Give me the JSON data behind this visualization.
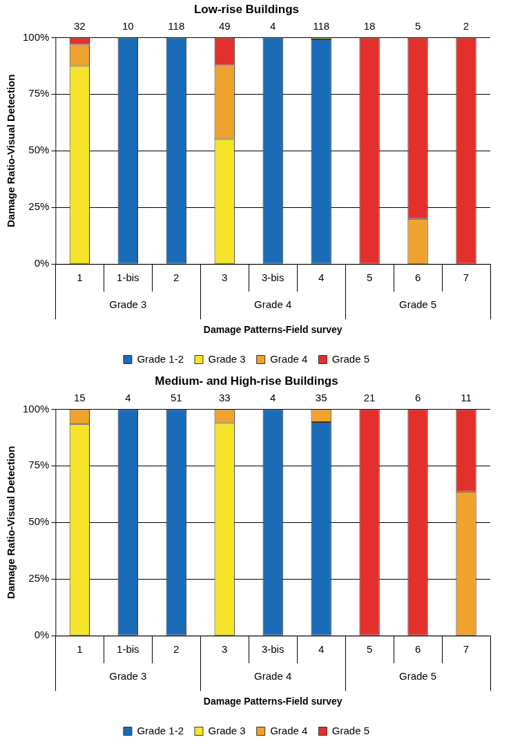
{
  "chart_data": [
    {
      "type": "bar",
      "title": "Low-rise Buildings",
      "xlabel": "Damage Patterns-Field survey",
      "ylabel": "Damage Ratio-Visual Detection",
      "stacked": true,
      "categories": [
        "1",
        "1-bis",
        "2",
        "3",
        "3-bis",
        "4",
        "5",
        "6",
        "7"
      ],
      "series": [
        {
          "name": "Grade 1-2",
          "color": "#1a6cb8",
          "values": [
            0,
            100,
            100,
            0,
            100,
            99.2,
            0,
            0,
            0
          ]
        },
        {
          "name": "Grade 3",
          "color": "#f5e42a",
          "values": [
            87.5,
            0,
            0,
            55.1,
            0,
            0.8,
            0,
            0,
            0
          ]
        },
        {
          "name": "Grade 4",
          "color": "#f0a22e",
          "values": [
            9.4,
            0,
            0,
            32.7,
            0,
            0,
            0,
            20,
            0
          ]
        },
        {
          "name": "Grade 5",
          "color": "#e3302c",
          "values": [
            3.1,
            0,
            0,
            12.2,
            0,
            0,
            100,
            80,
            100
          ]
        }
      ],
      "annotations": [
        {
          "text": "32",
          "x": "1",
          "y": 100
        },
        {
          "text": "10",
          "x": "1-bis",
          "y": 100
        },
        {
          "text": "118",
          "x": "2",
          "y": 100
        },
        {
          "text": "49",
          "x": "3",
          "y": 100
        },
        {
          "text": "4",
          "x": "3-bis",
          "y": 100
        },
        {
          "text": "118",
          "x": "4",
          "y": 100
        },
        {
          "text": "18",
          "x": "5",
          "y": 100
        },
        {
          "text": "5",
          "x": "6",
          "y": 100
        },
        {
          "text": "2",
          "x": "7",
          "y": 100
        },
        "Grade 3",
        "Grade 4",
        "Grade 5"
      ],
      "ylim": [
        0,
        100
      ],
      "yticks": [
        {
          "value": 0,
          "label": "0%"
        },
        {
          "value": 25,
          "label": "25%"
        },
        {
          "value": 50,
          "label": "50%"
        },
        {
          "value": 75,
          "label": "75%"
        },
        {
          "value": 100,
          "label": "100%"
        }
      ],
      "grid": "y",
      "legend": "bottom"
    },
    {
      "type": "bar",
      "title": "Medium- and High-rise Buildings",
      "xlabel": "Damage Patterns-Field survey",
      "ylabel": "Damage Ratio-Visual Detection",
      "stacked": true,
      "categories": [
        "1",
        "1-bis",
        "2",
        "3",
        "3-bis",
        "4",
        "5",
        "6",
        "7"
      ],
      "series": [
        {
          "name": "Grade 1-2",
          "color": "#1a6cb8",
          "values": [
            0,
            100,
            100,
            0,
            100,
            94.3,
            0,
            0,
            0
          ]
        },
        {
          "name": "Grade 3",
          "color": "#f5e42a",
          "values": [
            93.3,
            0,
            0,
            93.9,
            0,
            0,
            0,
            0,
            0
          ]
        },
        {
          "name": "Grade 4",
          "color": "#f0a22e",
          "values": [
            6.7,
            0,
            0,
            6.1,
            0,
            5.7,
            0,
            0,
            63.6
          ]
        },
        {
          "name": "Grade 5",
          "color": "#e3302c",
          "values": [
            0,
            0,
            0,
            0,
            0,
            0,
            100,
            100,
            36.4
          ]
        }
      ],
      "annotations": [
        {
          "text": "15",
          "x": "1",
          "y": 100
        },
        {
          "text": "4",
          "x": "1-bis",
          "y": 100
        },
        {
          "text": "51",
          "x": "2",
          "y": 100
        },
        {
          "text": "33",
          "x": "3",
          "y": 100
        },
        {
          "text": "4",
          "x": "3-bis",
          "y": 100
        },
        {
          "text": "35",
          "x": "4",
          "y": 100
        },
        {
          "text": "21",
          "x": "5",
          "y": 100
        },
        {
          "text": "6",
          "x": "6",
          "y": 100
        },
        {
          "text": "11",
          "x": "7",
          "y": 100
        },
        "Grade 3",
        "Grade 4",
        "Grade 5"
      ],
      "ylim": [
        0,
        100
      ],
      "yticks": [
        {
          "value": 0,
          "label": "0%"
        },
        {
          "value": 25,
          "label": "25%"
        },
        {
          "value": 50,
          "label": "50%"
        },
        {
          "value": 75,
          "label": "75%"
        },
        {
          "value": 100,
          "label": "100%"
        }
      ],
      "grid": "y",
      "legend": "bottom"
    }
  ]
}
